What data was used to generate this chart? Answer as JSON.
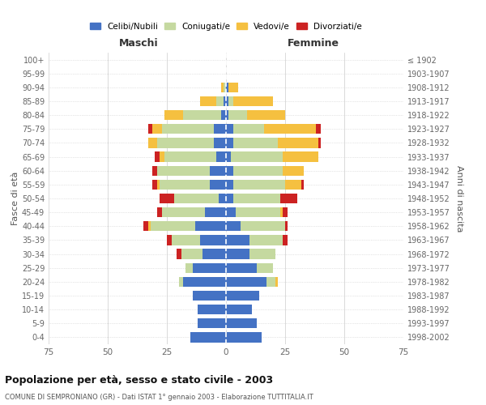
{
  "age_groups": [
    "0-4",
    "5-9",
    "10-14",
    "15-19",
    "20-24",
    "25-29",
    "30-34",
    "35-39",
    "40-44",
    "45-49",
    "50-54",
    "55-59",
    "60-64",
    "65-69",
    "70-74",
    "75-79",
    "80-84",
    "85-89",
    "90-94",
    "95-99",
    "100+"
  ],
  "birth_years": [
    "1998-2002",
    "1993-1997",
    "1988-1992",
    "1983-1987",
    "1978-1982",
    "1973-1977",
    "1968-1972",
    "1963-1967",
    "1958-1962",
    "1953-1957",
    "1948-1952",
    "1943-1947",
    "1938-1942",
    "1933-1937",
    "1928-1932",
    "1923-1927",
    "1918-1922",
    "1913-1917",
    "1908-1912",
    "1903-1907",
    "≤ 1902"
  ],
  "males": {
    "celibi": [
      15,
      12,
      12,
      14,
      18,
      14,
      10,
      11,
      13,
      9,
      3,
      7,
      7,
      4,
      5,
      5,
      2,
      1,
      0,
      0,
      0
    ],
    "coniugati": [
      0,
      0,
      0,
      0,
      2,
      3,
      9,
      12,
      19,
      18,
      19,
      21,
      22,
      22,
      24,
      22,
      16,
      3,
      1,
      0,
      0
    ],
    "vedovi": [
      0,
      0,
      0,
      0,
      0,
      0,
      0,
      0,
      1,
      0,
      0,
      1,
      0,
      2,
      4,
      4,
      8,
      7,
      1,
      0,
      0
    ],
    "divorziati": [
      0,
      0,
      0,
      0,
      0,
      0,
      2,
      2,
      2,
      2,
      6,
      2,
      2,
      2,
      0,
      2,
      0,
      0,
      0,
      0,
      0
    ]
  },
  "females": {
    "nubili": [
      15,
      13,
      11,
      14,
      17,
      13,
      10,
      10,
      6,
      4,
      3,
      3,
      3,
      2,
      3,
      3,
      1,
      1,
      1,
      0,
      0
    ],
    "coniugate": [
      0,
      0,
      0,
      0,
      4,
      7,
      11,
      14,
      19,
      19,
      20,
      22,
      21,
      22,
      19,
      13,
      8,
      2,
      0,
      0,
      0
    ],
    "vedove": [
      0,
      0,
      0,
      0,
      1,
      0,
      0,
      0,
      0,
      1,
      0,
      7,
      9,
      15,
      17,
      22,
      16,
      17,
      4,
      0,
      0
    ],
    "divorziate": [
      0,
      0,
      0,
      0,
      0,
      0,
      0,
      2,
      1,
      2,
      7,
      1,
      0,
      0,
      1,
      2,
      0,
      0,
      0,
      0,
      0
    ]
  },
  "colors": {
    "celibi": "#4472c4",
    "coniugati": "#c5d9a0",
    "vedovi": "#f5c040",
    "divorziati": "#cc2222"
  },
  "title": "Popolazione per età, sesso e stato civile - 2003",
  "subtitle": "COMUNE DI SEMPRONIANO (GR) - Dati ISTAT 1° gennaio 2003 - Elaborazione TUTTITALIA.IT",
  "xlabel_left": "Maschi",
  "xlabel_right": "Femmine",
  "ylabel_left": "Fasce di età",
  "ylabel_right": "Anni di nascita",
  "xlim": 75,
  "legend_labels": [
    "Celibi/Nubili",
    "Coniugati/e",
    "Vedovi/e",
    "Divorziati/e"
  ],
  "bg_color": "#ffffff",
  "grid_color": "#cccccc"
}
